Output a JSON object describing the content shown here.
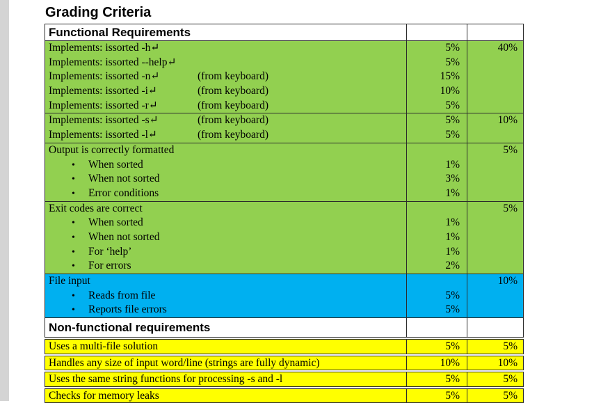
{
  "title": "Grading Criteria",
  "colors": {
    "green": "#92d050",
    "blue": "#00b0f0",
    "yellow": "#ffff00",
    "header_bg": "#ffffff",
    "border": "#2b2b2b",
    "gutter_gray": "#d4d4d4"
  },
  "return_symbol": "↵",
  "bullet_symbol": "•",
  "table": {
    "sections": [
      {
        "kind": "header",
        "style": "hdr1",
        "label": "Functional Requirements"
      },
      {
        "kind": "group",
        "color": "green",
        "total": "40%",
        "lines": [
          {
            "text": "Implements: issorted -h↵",
            "note": "",
            "pct": "5%"
          },
          {
            "text": "Implements: issorted --help↵",
            "note": "",
            "pct": "5%"
          },
          {
            "text": "Implements: issorted -n↵",
            "note": "(from keyboard)",
            "pct": "15%"
          },
          {
            "text": "Implements: issorted -i↵",
            "note": "(from keyboard)",
            "pct": "10%"
          },
          {
            "text": "Implements: issorted -r↵",
            "note": "(from keyboard)",
            "pct": "5%"
          }
        ]
      },
      {
        "kind": "group",
        "color": "green",
        "total": "10%",
        "lines": [
          {
            "text": "Implements: issorted -s↵",
            "note": "(from keyboard)",
            "pct": "5%"
          },
          {
            "text": "Implements: issorted -l↵",
            "note": "(from keyboard)",
            "pct": "5%"
          }
        ]
      },
      {
        "kind": "group",
        "color": "green",
        "total": "5%",
        "lines": [
          {
            "text": "Output is correctly formatted",
            "note": "",
            "pct": ""
          },
          {
            "text": "When sorted",
            "bullet": true,
            "pct": "1%"
          },
          {
            "text": "When not sorted",
            "bullet": true,
            "pct": "3%"
          },
          {
            "text": "Error conditions",
            "bullet": true,
            "pct": "1%"
          }
        ]
      },
      {
        "kind": "group",
        "color": "green",
        "total": "5%",
        "lines": [
          {
            "text": "Exit codes are correct",
            "note": "",
            "pct": ""
          },
          {
            "text": "When sorted",
            "bullet": true,
            "pct": "1%"
          },
          {
            "text": "When not sorted",
            "bullet": true,
            "pct": "1%"
          },
          {
            "text": "For ‘help’",
            "bullet": true,
            "pct": "1%"
          },
          {
            "text": "For errors",
            "bullet": true,
            "pct": "2%"
          }
        ]
      },
      {
        "kind": "group",
        "color": "blue",
        "total": "10%",
        "lines": [
          {
            "text": "File input",
            "note": "",
            "pct": ""
          },
          {
            "text": "Reads from file",
            "bullet": true,
            "pct": "5%"
          },
          {
            "text": "Reports file errors",
            "bullet": true,
            "pct": "5%"
          }
        ]
      },
      {
        "kind": "header",
        "style": "hdr2",
        "label": "Non-functional requirements"
      },
      {
        "kind": "row",
        "color": "yellow",
        "text": "Uses a multi-file solution",
        "pct": "5%",
        "total": "5%"
      },
      {
        "kind": "row",
        "color": "yellow",
        "text": "Handles any size of input word/line (strings are fully dynamic)",
        "pct": "10%",
        "total": "10%"
      },
      {
        "kind": "row",
        "color": "yellow",
        "text": "Uses the same string functions for processing -s and -l",
        "pct": "5%",
        "total": "5%"
      },
      {
        "kind": "row",
        "color": "yellow",
        "text": "Checks for memory leaks",
        "pct": "5%",
        "total": "5%"
      }
    ]
  }
}
